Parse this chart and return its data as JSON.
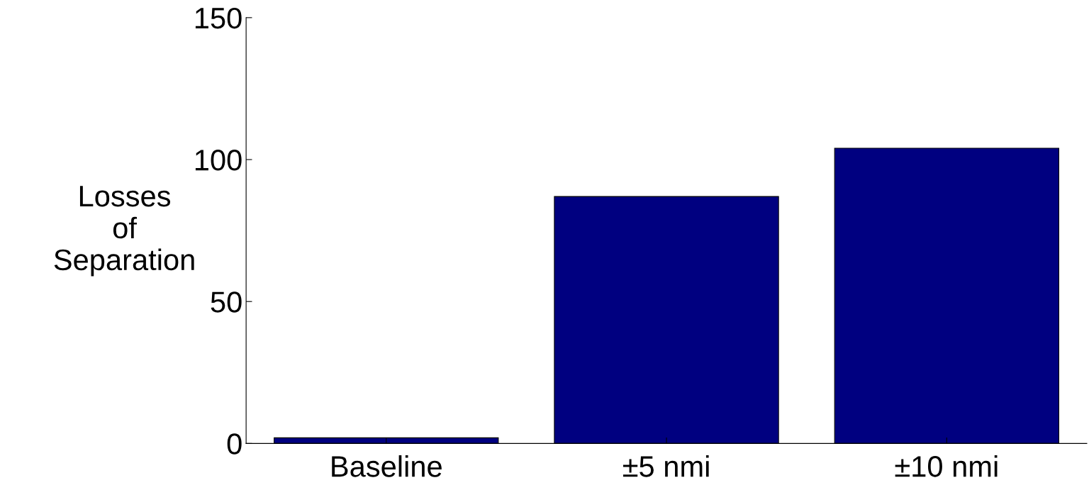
{
  "chart_data": {
    "type": "bar",
    "ylabel": "Losses\nof\nSeparation",
    "categories": [
      "Baseline",
      "±5 nmi",
      "±10 nmi"
    ],
    "values": [
      2,
      87,
      104
    ],
    "color": "#000080",
    "ylim": [
      0,
      150
    ],
    "yticks": [
      0,
      50,
      100,
      150
    ],
    "grid": false
  }
}
